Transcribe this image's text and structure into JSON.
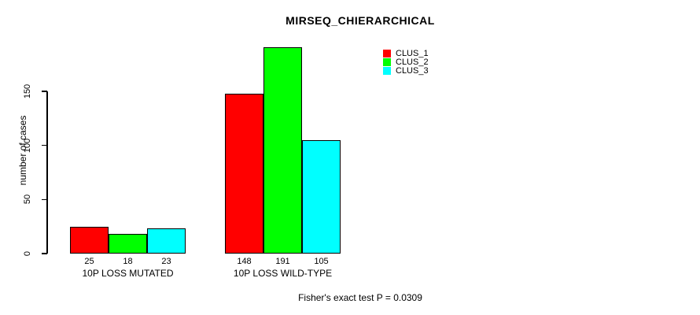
{
  "chart_data": {
    "type": "bar",
    "title": "MIRSEQ_CHIERARCHICAL",
    "ylabel": "number of cases",
    "xlabel": "",
    "categories": [
      "10P LOSS MUTATED",
      "10P LOSS WILD-TYPE"
    ],
    "series": [
      {
        "name": "CLUS_1",
        "color": "#ff0000",
        "values": [
          25,
          148
        ]
      },
      {
        "name": "CLUS_2",
        "color": "#00ff00",
        "values": [
          18,
          191
        ]
      },
      {
        "name": "CLUS_3",
        "color": "#00ffff",
        "values": [
          23,
          105
        ]
      }
    ],
    "bar_value_labels": [
      [
        25,
        18,
        23
      ],
      [
        148,
        191,
        105
      ]
    ],
    "yticks": [
      0,
      50,
      100,
      150
    ],
    "ylim": [
      0,
      150
    ],
    "grid": false,
    "legend_position": "top-right",
    "legend_entries": [
      "CLUS_1",
      "CLUS_2",
      "CLUS_3"
    ]
  },
  "annotations": {
    "fisher_test": "Fisher's exact test P = 0.0309"
  }
}
